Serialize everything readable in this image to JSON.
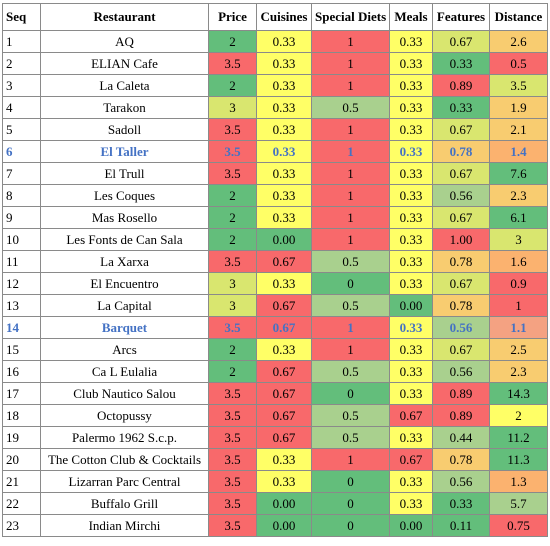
{
  "headers": [
    "Seq",
    "Restaurant",
    "Price",
    "Cuisines",
    "Special Diets",
    "Meals",
    "Features",
    "Distance"
  ],
  "colors": {
    "green": "#63be7b",
    "light_green": "#a9d08e",
    "yellow": "#ffff66",
    "yellow_green": "#d9e66f",
    "orange": "#fbb26f",
    "light_orange": "#f8cc70",
    "red": "#f8696b",
    "salmon": "#f4a282",
    "highlight_text": "#4472c4"
  },
  "rows": [
    {
      "seq": "1",
      "name": "AQ",
      "price": "2",
      "cuisines": "0.33",
      "diets": "1",
      "meals": "0.33",
      "features": "0.67",
      "distance": "2.6",
      "highlight": false,
      "c": [
        "green",
        "yellow",
        "red",
        "yellow",
        "yellow_green",
        "light_orange"
      ]
    },
    {
      "seq": "2",
      "name": "ELIAN Cafe",
      "price": "3.5",
      "cuisines": "0.33",
      "diets": "1",
      "meals": "0.33",
      "features": "0.33",
      "distance": "0.5",
      "highlight": false,
      "c": [
        "red",
        "yellow",
        "red",
        "yellow",
        "green",
        "red"
      ]
    },
    {
      "seq": "3",
      "name": "La Caleta",
      "price": "2",
      "cuisines": "0.33",
      "diets": "1",
      "meals": "0.33",
      "features": "0.89",
      "distance": "3.5",
      "highlight": false,
      "c": [
        "green",
        "yellow",
        "red",
        "yellow",
        "red",
        "yellow_green"
      ]
    },
    {
      "seq": "4",
      "name": "Tarakon",
      "price": "3",
      "cuisines": "0.33",
      "diets": "0.5",
      "meals": "0.33",
      "features": "0.33",
      "distance": "1.9",
      "highlight": false,
      "c": [
        "yellow_green",
        "yellow",
        "light_green",
        "yellow",
        "green",
        "light_orange"
      ]
    },
    {
      "seq": "5",
      "name": "Sadoll",
      "price": "3.5",
      "cuisines": "0.33",
      "diets": "1",
      "meals": "0.33",
      "features": "0.67",
      "distance": "2.1",
      "highlight": false,
      "c": [
        "red",
        "yellow",
        "red",
        "yellow",
        "yellow_green",
        "light_orange"
      ]
    },
    {
      "seq": "6",
      "name": "El Taller",
      "price": "3.5",
      "cuisines": "0.33",
      "diets": "1",
      "meals": "0.33",
      "features": "0.78",
      "distance": "1.4",
      "highlight": true,
      "c": [
        "red",
        "yellow",
        "red",
        "yellow",
        "light_orange",
        "orange"
      ]
    },
    {
      "seq": "7",
      "name": "El Trull",
      "price": "3.5",
      "cuisines": "0.33",
      "diets": "1",
      "meals": "0.33",
      "features": "0.67",
      "distance": "7.6",
      "highlight": false,
      "c": [
        "red",
        "yellow",
        "red",
        "yellow",
        "yellow_green",
        "green"
      ]
    },
    {
      "seq": "8",
      "name": "Les Coques",
      "price": "2",
      "cuisines": "0.33",
      "diets": "1",
      "meals": "0.33",
      "features": "0.56",
      "distance": "2.3",
      "highlight": false,
      "c": [
        "green",
        "yellow",
        "red",
        "yellow",
        "light_green",
        "light_orange"
      ]
    },
    {
      "seq": "9",
      "name": "Mas Rosello",
      "price": "2",
      "cuisines": "0.33",
      "diets": "1",
      "meals": "0.33",
      "features": "0.67",
      "distance": "6.1",
      "highlight": false,
      "c": [
        "green",
        "yellow",
        "red",
        "yellow",
        "yellow_green",
        "green"
      ]
    },
    {
      "seq": "10",
      "name": "Les Fonts de Can Sala",
      "price": "2",
      "cuisines": "0.00",
      "diets": "1",
      "meals": "0.33",
      "features": "1.00",
      "distance": "3",
      "highlight": false,
      "c": [
        "green",
        "green",
        "red",
        "yellow",
        "red",
        "yellow_green"
      ]
    },
    {
      "seq": "11",
      "name": "La Xarxa",
      "price": "3.5",
      "cuisines": "0.67",
      "diets": "0.5",
      "meals": "0.33",
      "features": "0.78",
      "distance": "1.6",
      "highlight": false,
      "c": [
        "red",
        "red",
        "light_green",
        "yellow",
        "light_orange",
        "orange"
      ]
    },
    {
      "seq": "12",
      "name": "El Encuentro",
      "price": "3",
      "cuisines": "0.33",
      "diets": "0",
      "meals": "0.33",
      "features": "0.67",
      "distance": "0.9",
      "highlight": false,
      "c": [
        "yellow_green",
        "yellow",
        "green",
        "yellow",
        "yellow_green",
        "red"
      ]
    },
    {
      "seq": "13",
      "name": "La Capital",
      "price": "3",
      "cuisines": "0.67",
      "diets": "0.5",
      "meals": "0.00",
      "features": "0.78",
      "distance": "1",
      "highlight": false,
      "c": [
        "yellow_green",
        "red",
        "light_green",
        "green",
        "light_orange",
        "red"
      ]
    },
    {
      "seq": "14",
      "name": "Barquet",
      "price": "3.5",
      "cuisines": "0.67",
      "diets": "1",
      "meals": "0.33",
      "features": "0.56",
      "distance": "1.1",
      "highlight": true,
      "c": [
        "red",
        "red",
        "red",
        "yellow",
        "light_green",
        "salmon"
      ]
    },
    {
      "seq": "15",
      "name": "Arcs",
      "price": "2",
      "cuisines": "0.33",
      "diets": "1",
      "meals": "0.33",
      "features": "0.67",
      "distance": "2.5",
      "highlight": false,
      "c": [
        "green",
        "yellow",
        "red",
        "yellow",
        "yellow_green",
        "light_orange"
      ]
    },
    {
      "seq": "16",
      "name": "Ca L Eulalia",
      "price": "2",
      "cuisines": "0.67",
      "diets": "0.5",
      "meals": "0.33",
      "features": "0.56",
      "distance": "2.3",
      "highlight": false,
      "c": [
        "green",
        "red",
        "light_green",
        "yellow",
        "light_green",
        "light_orange"
      ]
    },
    {
      "seq": "17",
      "name": "Club Nautico Salou",
      "price": "3.5",
      "cuisines": "0.67",
      "diets": "0",
      "meals": "0.33",
      "features": "0.89",
      "distance": "14.3",
      "highlight": false,
      "c": [
        "red",
        "red",
        "green",
        "yellow",
        "red",
        "green"
      ]
    },
    {
      "seq": "18",
      "name": "Octopussy",
      "price": "3.5",
      "cuisines": "0.67",
      "diets": "0.5",
      "meals": "0.67",
      "features": "0.89",
      "distance": "2",
      "highlight": false,
      "c": [
        "red",
        "red",
        "light_green",
        "red",
        "red",
        "yellow"
      ]
    },
    {
      "seq": "19",
      "name": "Palermo 1962 S.c.p.",
      "price": "3.5",
      "cuisines": "0.67",
      "diets": "0.5",
      "meals": "0.33",
      "features": "0.44",
      "distance": "11.2",
      "highlight": false,
      "c": [
        "red",
        "red",
        "light_green",
        "yellow",
        "light_green",
        "green"
      ]
    },
    {
      "seq": "20",
      "name": "The Cotton Club & Cocktails",
      "price": "3.5",
      "cuisines": "0.33",
      "diets": "1",
      "meals": "0.67",
      "features": "0.78",
      "distance": "11.3",
      "highlight": false,
      "c": [
        "red",
        "yellow",
        "red",
        "red",
        "light_orange",
        "green"
      ]
    },
    {
      "seq": "21",
      "name": "Lizarran Parc Central",
      "price": "3.5",
      "cuisines": "0.33",
      "diets": "0",
      "meals": "0.33",
      "features": "0.56",
      "distance": "1.3",
      "highlight": false,
      "c": [
        "red",
        "yellow",
        "green",
        "yellow",
        "light_green",
        "orange"
      ]
    },
    {
      "seq": "22",
      "name": "Buffalo Grill",
      "price": "3.5",
      "cuisines": "0.00",
      "diets": "0",
      "meals": "0.33",
      "features": "0.33",
      "distance": "5.7",
      "highlight": false,
      "c": [
        "red",
        "green",
        "green",
        "yellow",
        "green",
        "light_green"
      ]
    },
    {
      "seq": "23",
      "name": "Indian Mirchi",
      "price": "3.5",
      "cuisines": "0.00",
      "diets": "0",
      "meals": "0.00",
      "features": "0.11",
      "distance": "0.75",
      "highlight": false,
      "c": [
        "red",
        "green",
        "green",
        "green",
        "green",
        "red"
      ]
    }
  ]
}
